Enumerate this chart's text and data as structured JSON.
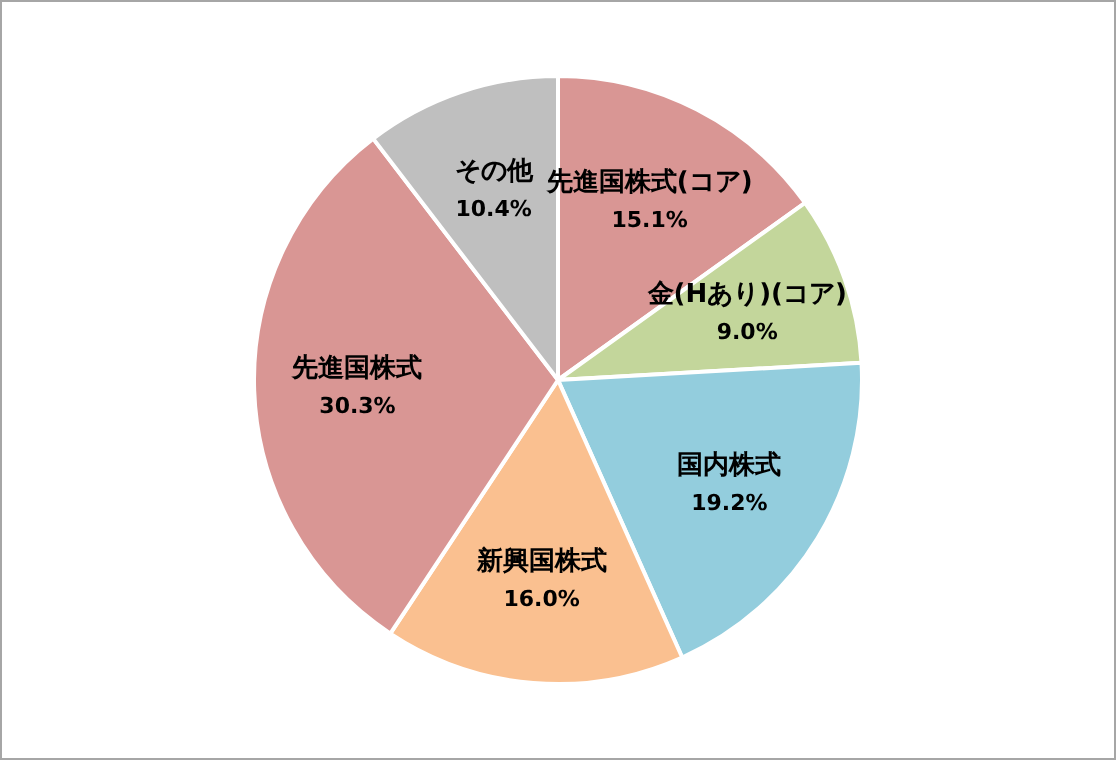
{
  "chart_data": {
    "type": "pie",
    "categories": [
      "先進国株式(コア)",
      "金(Hあり)(コア)",
      "国内株式",
      "新興国株式",
      "先進国株式",
      "その他"
    ],
    "values": [
      15.1,
      9.0,
      19.2,
      16.0,
      30.3,
      10.4
    ],
    "value_labels": [
      "15.1%",
      "9.0%",
      "19.2%",
      "16.0%",
      "30.3%",
      "10.4%"
    ],
    "colors": [
      "#d99694",
      "#c3d69b",
      "#93cddd",
      "#fac090",
      "#d99694",
      "#bfbfbf"
    ],
    "legend": false
  }
}
